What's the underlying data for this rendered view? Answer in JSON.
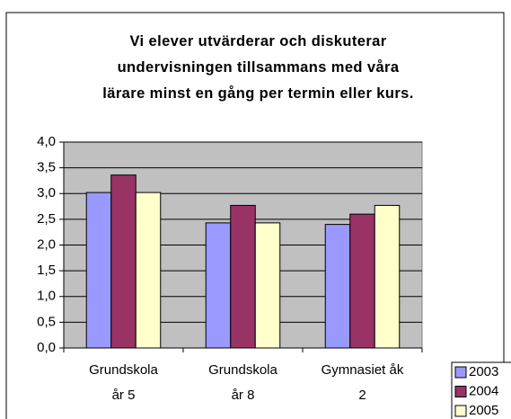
{
  "chart_data": {
    "type": "bar",
    "title": "Vi elever utvärderar och diskuterar\nundervisningen tillsammans med våra\nlärare minst en gång per termin eller kurs.",
    "categories": [
      "Grundskola\når 5",
      "Grundskola\når 8",
      "Gymnasiet åk\n2"
    ],
    "series": [
      {
        "name": "2003",
        "color": "#9999ff",
        "values": [
          3.02,
          2.43,
          2.4
        ]
      },
      {
        "name": "2004",
        "color": "#993366",
        "values": [
          3.36,
          2.77,
          2.6
        ]
      },
      {
        "name": "2005",
        "color": "#ffffcc",
        "values": [
          3.02,
          2.43,
          2.77
        ]
      }
    ],
    "ylim": [
      0,
      4
    ],
    "yticks": [
      {
        "value": 0,
        "label": "0,0"
      },
      {
        "value": 0.5,
        "label": "0,5"
      },
      {
        "value": 1,
        "label": "1,0"
      },
      {
        "value": 1.5,
        "label": "1,5"
      },
      {
        "value": 2,
        "label": "2,0"
      },
      {
        "value": 2.5,
        "label": "2,5"
      },
      {
        "value": 3,
        "label": "3,0"
      },
      {
        "value": 3.5,
        "label": "3,5"
      },
      {
        "value": 4,
        "label": "4,0"
      }
    ],
    "grid": true,
    "legend": "bottom-right"
  }
}
